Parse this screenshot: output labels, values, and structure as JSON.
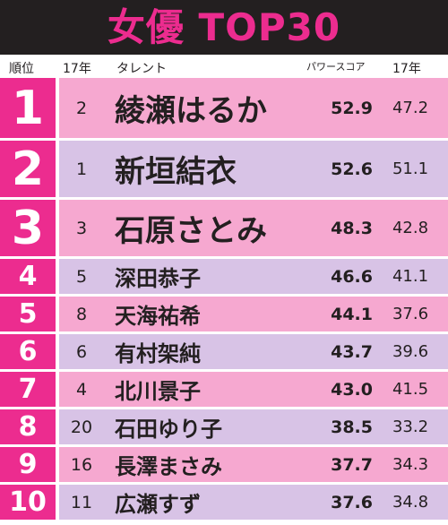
{
  "title": "女優 TOP30",
  "header": {
    "rank": "順位",
    "prev_year": "17年",
    "talent": "タレント",
    "power_score": "パワースコア",
    "prev_score": "17年"
  },
  "colors": {
    "accent": "#ec2c8f",
    "title_bar": "#231f20",
    "row_pink": "#f6a8d0",
    "row_lavender": "#d8c3e6"
  },
  "rows": [
    {
      "rank": "1",
      "prev": "2",
      "name": "綾瀬はるか",
      "score": "52.9",
      "prev_score": "47.2"
    },
    {
      "rank": "2",
      "prev": "1",
      "name": "新垣結衣",
      "score": "52.6",
      "prev_score": "51.1"
    },
    {
      "rank": "3",
      "prev": "3",
      "name": "石原さとみ",
      "score": "48.3",
      "prev_score": "42.8"
    },
    {
      "rank": "4",
      "prev": "5",
      "name": "深田恭子",
      "score": "46.6",
      "prev_score": "41.1"
    },
    {
      "rank": "5",
      "prev": "8",
      "name": "天海祐希",
      "score": "44.1",
      "prev_score": "37.6"
    },
    {
      "rank": "6",
      "prev": "6",
      "name": "有村架純",
      "score": "43.7",
      "prev_score": "39.6"
    },
    {
      "rank": "7",
      "prev": "4",
      "name": "北川景子",
      "score": "43.0",
      "prev_score": "41.5"
    },
    {
      "rank": "8",
      "prev": "20",
      "name": "石田ゆり子",
      "score": "38.5",
      "prev_score": "33.2"
    },
    {
      "rank": "9",
      "prev": "16",
      "name": "長澤まさみ",
      "score": "37.7",
      "prev_score": "34.3"
    },
    {
      "rank": "10",
      "prev": "11",
      "name": "広瀬すず",
      "score": "37.6",
      "prev_score": "34.8"
    }
  ]
}
